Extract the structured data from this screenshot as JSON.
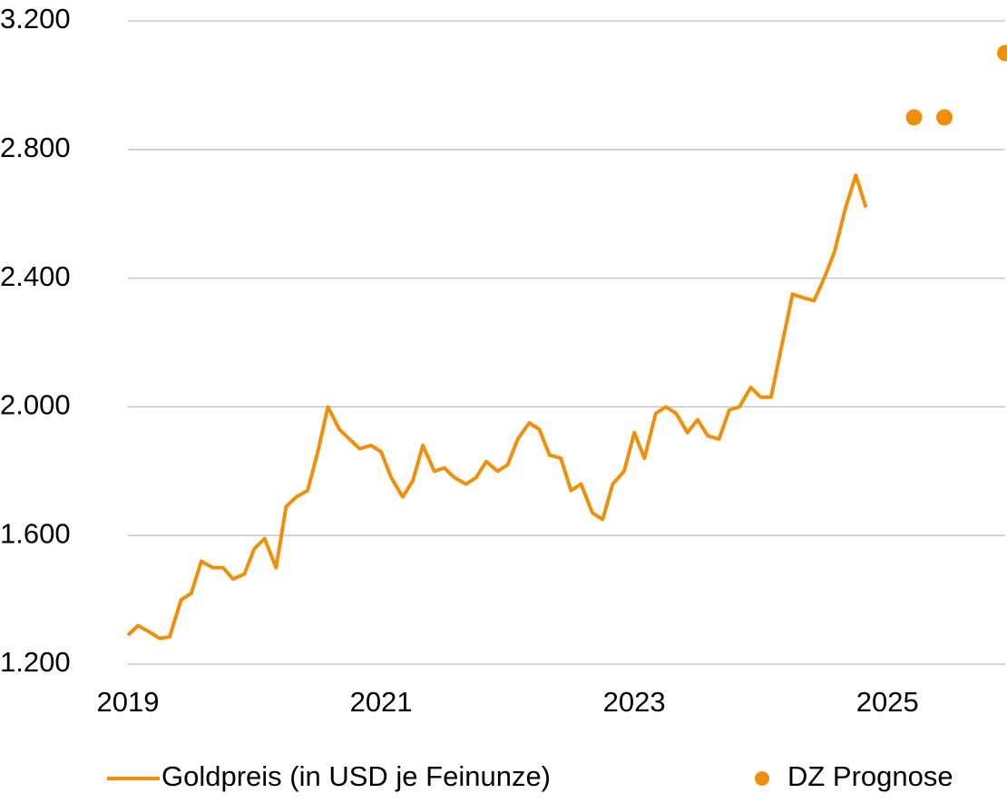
{
  "chart_data": {
    "type": "line",
    "series": [
      {
        "name": "Goldpreis (in USD je Feinunze)",
        "color": "#f0900a",
        "type": "line",
        "x": [
          2019.0,
          2019.08,
          2019.17,
          2019.25,
          2019.33,
          2019.42,
          2019.5,
          2019.58,
          2019.67,
          2019.75,
          2019.83,
          2019.92,
          2020.0,
          2020.08,
          2020.17,
          2020.25,
          2020.33,
          2020.42,
          2020.5,
          2020.58,
          2020.67,
          2020.75,
          2020.83,
          2020.92,
          2021.0,
          2021.08,
          2021.17,
          2021.25,
          2021.33,
          2021.42,
          2021.5,
          2021.58,
          2021.67,
          2021.75,
          2021.83,
          2021.92,
          2022.0,
          2022.08,
          2022.17,
          2022.25,
          2022.33,
          2022.42,
          2022.5,
          2022.58,
          2022.67,
          2022.75,
          2022.83,
          2022.92,
          2023.0,
          2023.08,
          2023.17,
          2023.25,
          2023.33,
          2023.42,
          2023.5,
          2023.58,
          2023.67,
          2023.75,
          2023.83,
          2023.92,
          2024.0,
          2024.08,
          2024.17,
          2024.25,
          2024.33,
          2024.42,
          2024.5,
          2024.58,
          2024.67,
          2024.75,
          2024.83
        ],
        "values": [
          1290,
          1320,
          1300,
          1280,
          1285,
          1400,
          1420,
          1520,
          1500,
          1500,
          1465,
          1480,
          1560,
          1590,
          1500,
          1690,
          1720,
          1740,
          1860,
          2000,
          1930,
          1900,
          1870,
          1880,
          1860,
          1780,
          1720,
          1770,
          1880,
          1800,
          1810,
          1780,
          1760,
          1780,
          1830,
          1800,
          1820,
          1900,
          1950,
          1930,
          1850,
          1840,
          1740,
          1760,
          1670,
          1650,
          1760,
          1800,
          1920,
          1840,
          1980,
          2000,
          1980,
          1920,
          1960,
          1910,
          1900,
          1990,
          2000,
          2060,
          2030,
          2030,
          2200,
          2350,
          2340,
          2330,
          2400,
          2480,
          2620,
          2720,
          2620
        ]
      },
      {
        "name": "DZ Prognose",
        "color": "#f0900a",
        "type": "scatter",
        "x": [
          2025.21,
          2025.45,
          2025.93
        ],
        "values": [
          2900,
          2900,
          3100
        ]
      }
    ],
    "xlim": [
      2019,
      2025.93
    ],
    "xticks": [
      2019,
      2021,
      2023,
      2025
    ],
    "ylim": [
      1200,
      3200
    ],
    "yticks": [
      {
        "value": 1200,
        "label": "1.200"
      },
      {
        "value": 1600,
        "label": "1.600"
      },
      {
        "value": 2000,
        "label": "2.000"
      },
      {
        "value": 2400,
        "label": "2.400"
      },
      {
        "value": 2800,
        "label": "2.800"
      },
      {
        "value": 3200,
        "label": "3.200"
      }
    ],
    "grid": true,
    "legend": "bottom"
  }
}
